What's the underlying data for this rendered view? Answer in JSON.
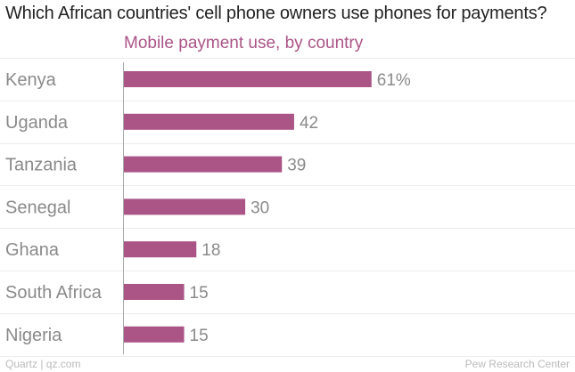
{
  "title": "Which African countries' cell phone owners use phones for payments?",
  "subtitle": "Mobile payment use, by country",
  "footer": {
    "credit": "Quartz | qz.com",
    "source": "Pew Research Center"
  },
  "colors": {
    "bar": "#ab5587",
    "subtitle": "#ab5587",
    "label": "#8a8a8a",
    "grid": "#ececec",
    "axis": "#aaaaaa"
  },
  "chart_data": {
    "type": "bar",
    "orientation": "horizontal",
    "title": "Which African countries' cell phone owners use phones for payments?",
    "subtitle": "Mobile payment use, by country",
    "categories": [
      "Kenya",
      "Uganda",
      "Tanzania",
      "Senegal",
      "Ghana",
      "South Africa",
      "Nigeria"
    ],
    "values": [
      61,
      42,
      39,
      30,
      18,
      15,
      15
    ],
    "value_labels": [
      "61%",
      "42",
      "39",
      "30",
      "18",
      "15",
      "15"
    ],
    "xlim": [
      0,
      100
    ],
    "grid": true
  }
}
